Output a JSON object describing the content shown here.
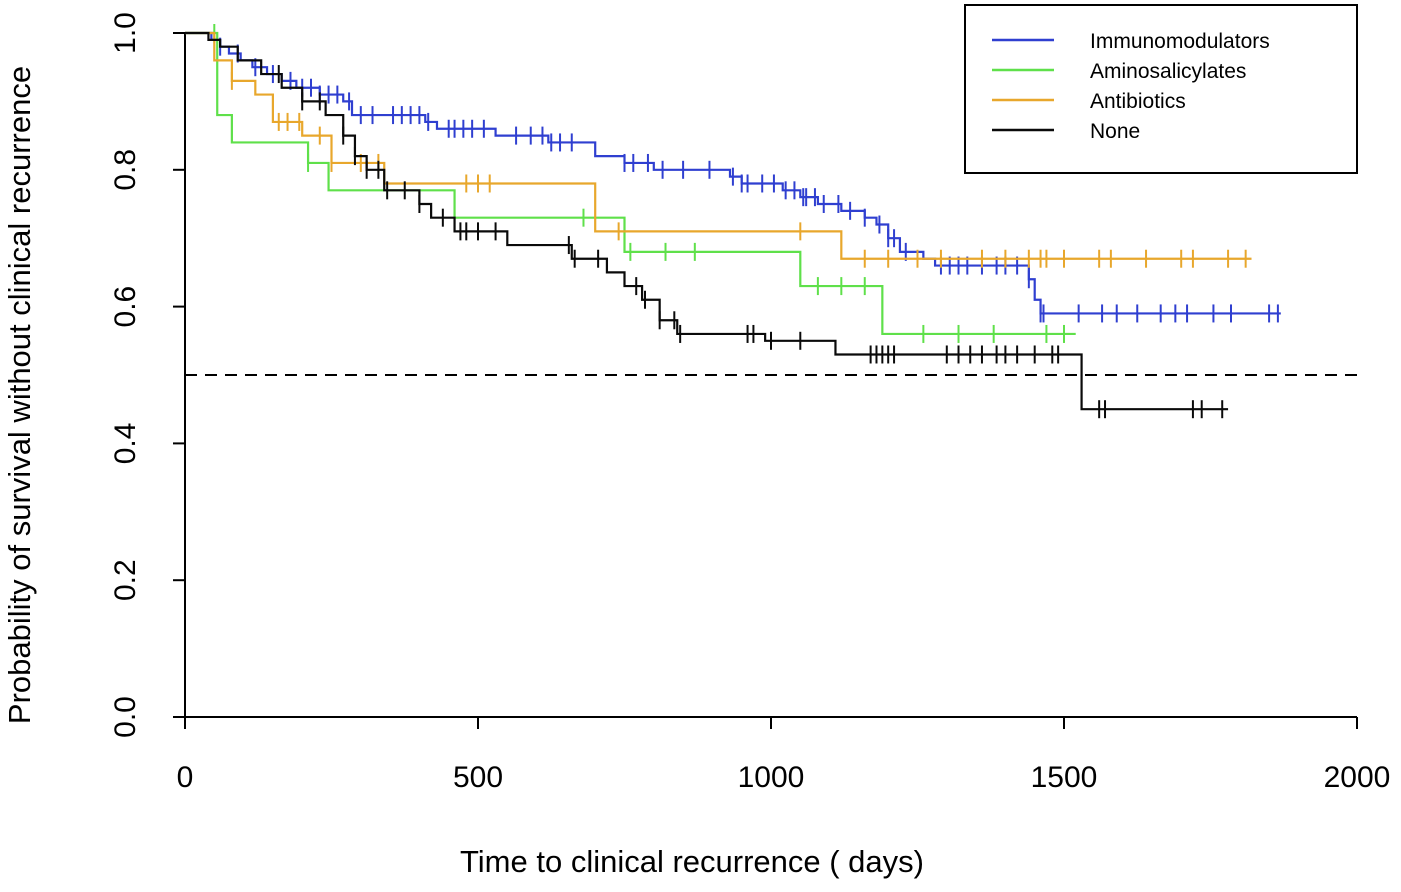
{
  "chart_data": {
    "type": "line",
    "subtype": "kaplan-meier step",
    "title": "",
    "xlabel": "Time to clinical recurrence ( days)",
    "ylabel": "Probability of survival without clinical recurrence",
    "xlim": [
      0,
      2000
    ],
    "ylim": [
      0,
      1.0
    ],
    "x_ticks": [
      "0",
      "500",
      "1000",
      "1500",
      "2000"
    ],
    "y_ticks": [
      "0.0",
      "0.2",
      "0.4",
      "0.6",
      "0.8",
      "1.0"
    ],
    "grid": false,
    "legend_position": "top-right",
    "reference_line": {
      "y": 0.5,
      "style": "dashed"
    },
    "series": [
      {
        "name": "Immunomodulators",
        "color": "#2f3fd0",
        "steps": [
          [
            0,
            1.0
          ],
          [
            30,
            1.0
          ],
          [
            45,
            0.99
          ],
          [
            60,
            0.98
          ],
          [
            75,
            0.97
          ],
          [
            95,
            0.96
          ],
          [
            115,
            0.95
          ],
          [
            140,
            0.94
          ],
          [
            165,
            0.93
          ],
          [
            190,
            0.92
          ],
          [
            230,
            0.91
          ],
          [
            270,
            0.9
          ],
          [
            285,
            0.88
          ],
          [
            410,
            0.87
          ],
          [
            430,
            0.86
          ],
          [
            530,
            0.85
          ],
          [
            620,
            0.84
          ],
          [
            700,
            0.82
          ],
          [
            750,
            0.81
          ],
          [
            800,
            0.8
          ],
          [
            930,
            0.79
          ],
          [
            950,
            0.78
          ],
          [
            1020,
            0.77
          ],
          [
            1050,
            0.76
          ],
          [
            1080,
            0.75
          ],
          [
            1120,
            0.74
          ],
          [
            1160,
            0.73
          ],
          [
            1180,
            0.72
          ],
          [
            1200,
            0.7
          ],
          [
            1220,
            0.68
          ],
          [
            1260,
            0.67
          ],
          [
            1280,
            0.66
          ],
          [
            1440,
            0.64
          ],
          [
            1450,
            0.61
          ],
          [
            1460,
            0.59
          ],
          [
            1870,
            0.59
          ]
        ],
        "censor_x": [
          60,
          90,
          120,
          150,
          180,
          200,
          215,
          230,
          245,
          260,
          280,
          300,
          320,
          355,
          370,
          385,
          400,
          415,
          450,
          460,
          475,
          490,
          510,
          565,
          590,
          610,
          625,
          640,
          660,
          750,
          765,
          790,
          815,
          850,
          895,
          935,
          950,
          960,
          985,
          1005,
          1025,
          1040,
          1055,
          1060,
          1075,
          1090,
          1115,
          1135,
          1160,
          1185,
          1200,
          1210,
          1230,
          1290,
          1305,
          1320,
          1335,
          1360,
          1385,
          1400,
          1420,
          1440,
          1460,
          1465,
          1525,
          1565,
          1590,
          1625,
          1665,
          1690,
          1710,
          1755,
          1785,
          1850,
          1865
        ]
      },
      {
        "name": "Aminosalicylates",
        "color": "#5fe04a",
        "steps": [
          [
            0,
            1.0
          ],
          [
            45,
            1.0
          ],
          [
            55,
            0.88
          ],
          [
            80,
            0.84
          ],
          [
            210,
            0.81
          ],
          [
            245,
            0.77
          ],
          [
            460,
            0.73
          ],
          [
            750,
            0.68
          ],
          [
            1050,
            0.63
          ],
          [
            1190,
            0.56
          ],
          [
            1520,
            0.56
          ]
        ],
        "censor_x": [
          50,
          210,
          680,
          760,
          820,
          870,
          1080,
          1120,
          1160,
          1260,
          1320,
          1380,
          1470,
          1500
        ]
      },
      {
        "name": "Antibiotics",
        "color": "#e8a72c",
        "steps": [
          [
            0,
            1.0
          ],
          [
            40,
            1.0
          ],
          [
            50,
            0.96
          ],
          [
            80,
            0.93
          ],
          [
            120,
            0.91
          ],
          [
            150,
            0.87
          ],
          [
            200,
            0.85
          ],
          [
            250,
            0.81
          ],
          [
            340,
            0.78
          ],
          [
            700,
            0.71
          ],
          [
            1120,
            0.67
          ],
          [
            1820,
            0.67
          ]
        ],
        "censor_x": [
          80,
          160,
          175,
          195,
          230,
          250,
          300,
          330,
          480,
          500,
          520,
          740,
          1050,
          1160,
          1200,
          1250,
          1290,
          1360,
          1400,
          1440,
          1460,
          1470,
          1500,
          1560,
          1580,
          1640,
          1700,
          1720,
          1780,
          1810
        ]
      },
      {
        "name": "None",
        "color": "#0a0a0a",
        "steps": [
          [
            0,
            1.0
          ],
          [
            40,
            0.99
          ],
          [
            60,
            0.98
          ],
          [
            90,
            0.96
          ],
          [
            130,
            0.94
          ],
          [
            165,
            0.92
          ],
          [
            200,
            0.9
          ],
          [
            240,
            0.88
          ],
          [
            270,
            0.85
          ],
          [
            290,
            0.82
          ],
          [
            310,
            0.8
          ],
          [
            340,
            0.77
          ],
          [
            400,
            0.75
          ],
          [
            420,
            0.73
          ],
          [
            460,
            0.71
          ],
          [
            550,
            0.69
          ],
          [
            660,
            0.67
          ],
          [
            720,
            0.65
          ],
          [
            750,
            0.63
          ],
          [
            780,
            0.61
          ],
          [
            810,
            0.58
          ],
          [
            840,
            0.56
          ],
          [
            990,
            0.55
          ],
          [
            1110,
            0.53
          ],
          [
            1530,
            0.45
          ],
          [
            1780,
            0.45
          ]
        ],
        "censor_x": [
          160,
          200,
          230,
          270,
          290,
          310,
          330,
          345,
          375,
          400,
          440,
          470,
          480,
          500,
          530,
          655,
          665,
          705,
          770,
          785,
          810,
          835,
          845,
          960,
          970,
          1000,
          1050,
          1170,
          1180,
          1190,
          1200,
          1210,
          1300,
          1320,
          1340,
          1360,
          1385,
          1400,
          1420,
          1450,
          1480,
          1490,
          1560,
          1570,
          1720,
          1735,
          1770
        ]
      }
    ]
  }
}
